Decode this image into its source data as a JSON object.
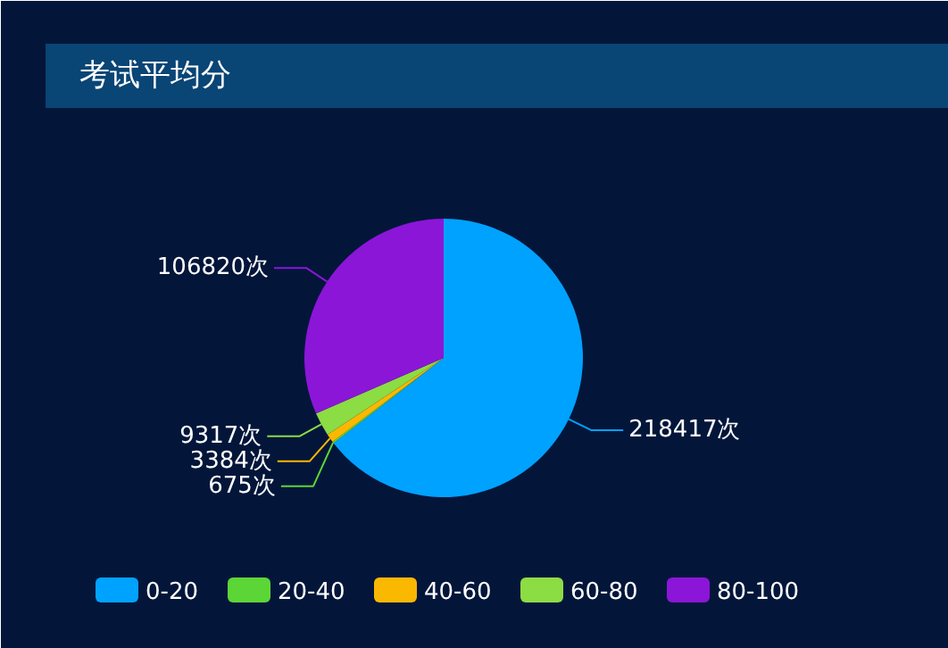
{
  "chart_data": {
    "type": "pie",
    "title": "考试平均分",
    "categories": [
      "0-20",
      "20-40",
      "40-60",
      "60-80",
      "80-100"
    ],
    "values": [
      218417,
      675,
      3384,
      9317,
      106820
    ],
    "colors": [
      "#00a2ff",
      "#5cd637",
      "#fbb800",
      "#8cdc44",
      "#8b16d8"
    ],
    "value_labels": [
      "218417次",
      "675次",
      "3384次",
      "9317次",
      "106820次"
    ],
    "legend": "bottom"
  }
}
